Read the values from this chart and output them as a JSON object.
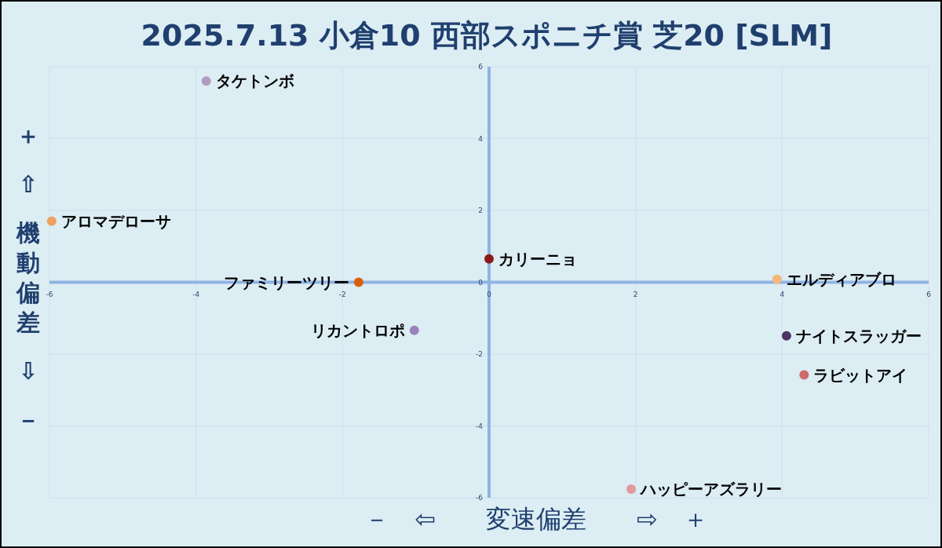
{
  "chart_data": {
    "type": "scatter",
    "title": "2025.7.13 小倉10 西部スポニチ賞 芝20 [SLM]",
    "xlabel": "－　⇦　　変速偏差　　⇨　＋",
    "ylabel": "＋ ⇧ 機動偏差 ⇩ －",
    "xlim": [
      -6,
      6
    ],
    "ylim": [
      -6,
      6
    ],
    "xticks": [
      -6,
      -4,
      -2,
      0,
      2,
      4,
      6
    ],
    "yticks": [
      -6,
      -4,
      -2,
      0,
      2,
      4,
      6
    ],
    "grid": true,
    "marker": "circle",
    "series": [
      {
        "name": "タケトンボ",
        "color": "#b09ac0",
        "x": [
          -3.86
        ],
        "values": [
          5.6
        ]
      },
      {
        "name": "アロマデローサ",
        "color": "#f0a060",
        "x": [
          -5.97
        ],
        "values": [
          1.7
        ]
      },
      {
        "name": "カリーニョ",
        "color": "#8b1a1a",
        "x": [
          0
        ],
        "values": [
          0.65
        ]
      },
      {
        "name": "ファミリーツリー",
        "color": "#d95f0e",
        "x": [
          -1.78
        ],
        "values": [
          0
        ]
      },
      {
        "name": "エルディアブロ",
        "color": "#f5b87a",
        "x": [
          3.93
        ],
        "values": [
          0.08
        ]
      },
      {
        "name": "リカントロポ",
        "color": "#9a80b8",
        "x": [
          -1.02
        ],
        "values": [
          -1.34
        ]
      },
      {
        "name": "ナイトスラッガー",
        "color": "#4b3366",
        "x": [
          4.06
        ],
        "values": [
          -1.49
        ]
      },
      {
        "name": "ラビットアイ",
        "color": "#cd6b6b",
        "x": [
          4.3
        ],
        "values": [
          -2.58
        ]
      },
      {
        "name": "ハッピーアズラリー",
        "color": "#e09a9a",
        "x": [
          1.94
        ],
        "values": [
          -5.76
        ]
      }
    ]
  }
}
